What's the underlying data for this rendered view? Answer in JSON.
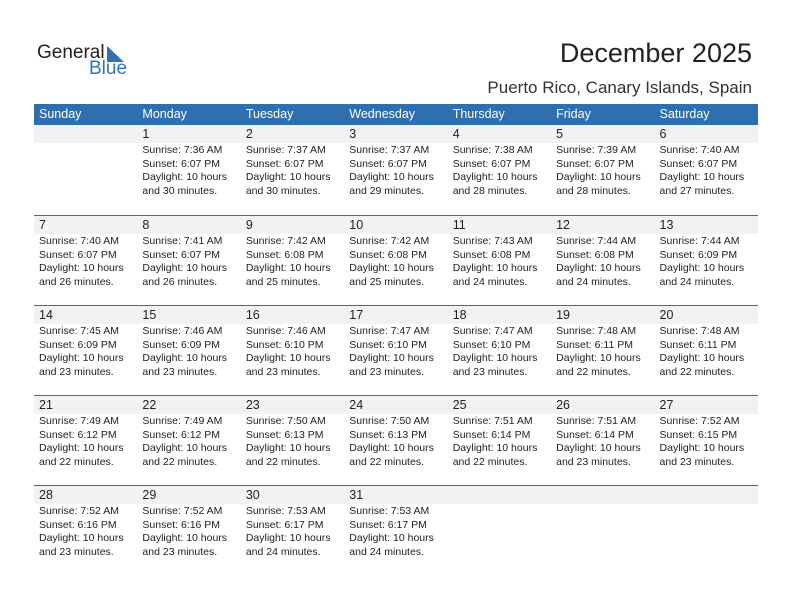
{
  "logo": {
    "line1": "General",
    "line2": "Blue"
  },
  "title": "December 2025",
  "location": "Puerto Rico, Canary Islands, Spain",
  "weekdays": [
    "Sunday",
    "Monday",
    "Tuesday",
    "Wednesday",
    "Thursday",
    "Friday",
    "Saturday"
  ],
  "colors": {
    "header": "#2e6fb0",
    "strip": "#f2f2f2",
    "accent": "#2e75b6"
  },
  "first_weekday_index": 1,
  "days": [
    {
      "day": "1",
      "sunrise": "Sunrise: 7:36 AM",
      "sunset": "Sunset: 6:07 PM",
      "daylight1": "Daylight: 10 hours",
      "daylight2": "and 30 minutes."
    },
    {
      "day": "2",
      "sunrise": "Sunrise: 7:37 AM",
      "sunset": "Sunset: 6:07 PM",
      "daylight1": "Daylight: 10 hours",
      "daylight2": "and 30 minutes."
    },
    {
      "day": "3",
      "sunrise": "Sunrise: 7:37 AM",
      "sunset": "Sunset: 6:07 PM",
      "daylight1": "Daylight: 10 hours",
      "daylight2": "and 29 minutes."
    },
    {
      "day": "4",
      "sunrise": "Sunrise: 7:38 AM",
      "sunset": "Sunset: 6:07 PM",
      "daylight1": "Daylight: 10 hours",
      "daylight2": "and 28 minutes."
    },
    {
      "day": "5",
      "sunrise": "Sunrise: 7:39 AM",
      "sunset": "Sunset: 6:07 PM",
      "daylight1": "Daylight: 10 hours",
      "daylight2": "and 28 minutes."
    },
    {
      "day": "6",
      "sunrise": "Sunrise: 7:40 AM",
      "sunset": "Sunset: 6:07 PM",
      "daylight1": "Daylight: 10 hours",
      "daylight2": "and 27 minutes."
    },
    {
      "day": "7",
      "sunrise": "Sunrise: 7:40 AM",
      "sunset": "Sunset: 6:07 PM",
      "daylight1": "Daylight: 10 hours",
      "daylight2": "and 26 minutes."
    },
    {
      "day": "8",
      "sunrise": "Sunrise: 7:41 AM",
      "sunset": "Sunset: 6:07 PM",
      "daylight1": "Daylight: 10 hours",
      "daylight2": "and 26 minutes."
    },
    {
      "day": "9",
      "sunrise": "Sunrise: 7:42 AM",
      "sunset": "Sunset: 6:08 PM",
      "daylight1": "Daylight: 10 hours",
      "daylight2": "and 25 minutes."
    },
    {
      "day": "10",
      "sunrise": "Sunrise: 7:42 AM",
      "sunset": "Sunset: 6:08 PM",
      "daylight1": "Daylight: 10 hours",
      "daylight2": "and 25 minutes."
    },
    {
      "day": "11",
      "sunrise": "Sunrise: 7:43 AM",
      "sunset": "Sunset: 6:08 PM",
      "daylight1": "Daylight: 10 hours",
      "daylight2": "and 24 minutes."
    },
    {
      "day": "12",
      "sunrise": "Sunrise: 7:44 AM",
      "sunset": "Sunset: 6:08 PM",
      "daylight1": "Daylight: 10 hours",
      "daylight2": "and 24 minutes."
    },
    {
      "day": "13",
      "sunrise": "Sunrise: 7:44 AM",
      "sunset": "Sunset: 6:09 PM",
      "daylight1": "Daylight: 10 hours",
      "daylight2": "and 24 minutes."
    },
    {
      "day": "14",
      "sunrise": "Sunrise: 7:45 AM",
      "sunset": "Sunset: 6:09 PM",
      "daylight1": "Daylight: 10 hours",
      "daylight2": "and 23 minutes."
    },
    {
      "day": "15",
      "sunrise": "Sunrise: 7:46 AM",
      "sunset": "Sunset: 6:09 PM",
      "daylight1": "Daylight: 10 hours",
      "daylight2": "and 23 minutes."
    },
    {
      "day": "16",
      "sunrise": "Sunrise: 7:46 AM",
      "sunset": "Sunset: 6:10 PM",
      "daylight1": "Daylight: 10 hours",
      "daylight2": "and 23 minutes."
    },
    {
      "day": "17",
      "sunrise": "Sunrise: 7:47 AM",
      "sunset": "Sunset: 6:10 PM",
      "daylight1": "Daylight: 10 hours",
      "daylight2": "and 23 minutes."
    },
    {
      "day": "18",
      "sunrise": "Sunrise: 7:47 AM",
      "sunset": "Sunset: 6:10 PM",
      "daylight1": "Daylight: 10 hours",
      "daylight2": "and 23 minutes."
    },
    {
      "day": "19",
      "sunrise": "Sunrise: 7:48 AM",
      "sunset": "Sunset: 6:11 PM",
      "daylight1": "Daylight: 10 hours",
      "daylight2": "and 22 minutes."
    },
    {
      "day": "20",
      "sunrise": "Sunrise: 7:48 AM",
      "sunset": "Sunset: 6:11 PM",
      "daylight1": "Daylight: 10 hours",
      "daylight2": "and 22 minutes."
    },
    {
      "day": "21",
      "sunrise": "Sunrise: 7:49 AM",
      "sunset": "Sunset: 6:12 PM",
      "daylight1": "Daylight: 10 hours",
      "daylight2": "and 22 minutes."
    },
    {
      "day": "22",
      "sunrise": "Sunrise: 7:49 AM",
      "sunset": "Sunset: 6:12 PM",
      "daylight1": "Daylight: 10 hours",
      "daylight2": "and 22 minutes."
    },
    {
      "day": "23",
      "sunrise": "Sunrise: 7:50 AM",
      "sunset": "Sunset: 6:13 PM",
      "daylight1": "Daylight: 10 hours",
      "daylight2": "and 22 minutes."
    },
    {
      "day": "24",
      "sunrise": "Sunrise: 7:50 AM",
      "sunset": "Sunset: 6:13 PM",
      "daylight1": "Daylight: 10 hours",
      "daylight2": "and 22 minutes."
    },
    {
      "day": "25",
      "sunrise": "Sunrise: 7:51 AM",
      "sunset": "Sunset: 6:14 PM",
      "daylight1": "Daylight: 10 hours",
      "daylight2": "and 22 minutes."
    },
    {
      "day": "26",
      "sunrise": "Sunrise: 7:51 AM",
      "sunset": "Sunset: 6:14 PM",
      "daylight1": "Daylight: 10 hours",
      "daylight2": "and 23 minutes."
    },
    {
      "day": "27",
      "sunrise": "Sunrise: 7:52 AM",
      "sunset": "Sunset: 6:15 PM",
      "daylight1": "Daylight: 10 hours",
      "daylight2": "and 23 minutes."
    },
    {
      "day": "28",
      "sunrise": "Sunrise: 7:52 AM",
      "sunset": "Sunset: 6:16 PM",
      "daylight1": "Daylight: 10 hours",
      "daylight2": "and 23 minutes."
    },
    {
      "day": "29",
      "sunrise": "Sunrise: 7:52 AM",
      "sunset": "Sunset: 6:16 PM",
      "daylight1": "Daylight: 10 hours",
      "daylight2": "and 23 minutes."
    },
    {
      "day": "30",
      "sunrise": "Sunrise: 7:53 AM",
      "sunset": "Sunset: 6:17 PM",
      "daylight1": "Daylight: 10 hours",
      "daylight2": "and 24 minutes."
    },
    {
      "day": "31",
      "sunrise": "Sunrise: 7:53 AM",
      "sunset": "Sunset: 6:17 PM",
      "daylight1": "Daylight: 10 hours",
      "daylight2": "and 24 minutes."
    }
  ]
}
